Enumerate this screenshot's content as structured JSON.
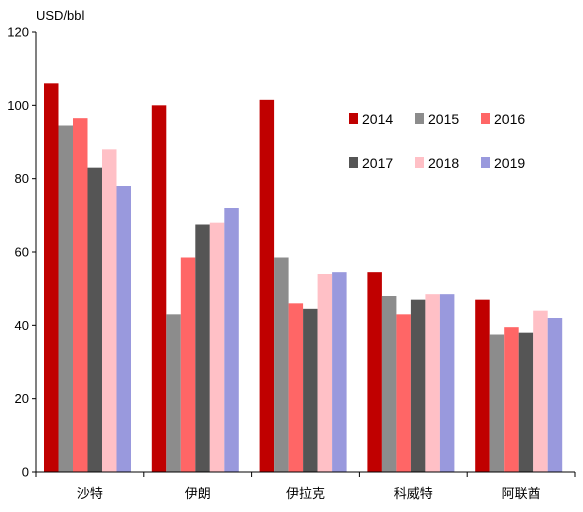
{
  "chart_data": {
    "type": "bar",
    "title": "",
    "unit_label": "USD/bbl",
    "xlabel": "",
    "ylabel": "",
    "ylim": [
      0,
      120
    ],
    "yticks": [
      0,
      20,
      40,
      60,
      80,
      100,
      120
    ],
    "grid": false,
    "legend_position": "top-right",
    "categories": [
      "沙特",
      "伊朗",
      "伊拉克",
      "科威特",
      "阿联酋"
    ],
    "series": [
      {
        "name": "2014",
        "color": "#c00000",
        "values": [
          106,
          100,
          101.5,
          54.5,
          47
        ]
      },
      {
        "name": "2015",
        "color": "#8c8c8c",
        "values": [
          94.5,
          43,
          58.5,
          48,
          37.5
        ]
      },
      {
        "name": "2016",
        "color": "#ff6666",
        "values": [
          96.5,
          58.5,
          46,
          43,
          39.5
        ]
      },
      {
        "name": "2017",
        "color": "#555555",
        "values": [
          83,
          67.5,
          44.5,
          47,
          38
        ]
      },
      {
        "name": "2018",
        "color": "#ffc0c6",
        "values": [
          88,
          68,
          54,
          48.5,
          44
        ]
      },
      {
        "name": "2019",
        "color": "#9999dd",
        "values": [
          78,
          72,
          54.5,
          48.5,
          42
        ]
      }
    ]
  }
}
